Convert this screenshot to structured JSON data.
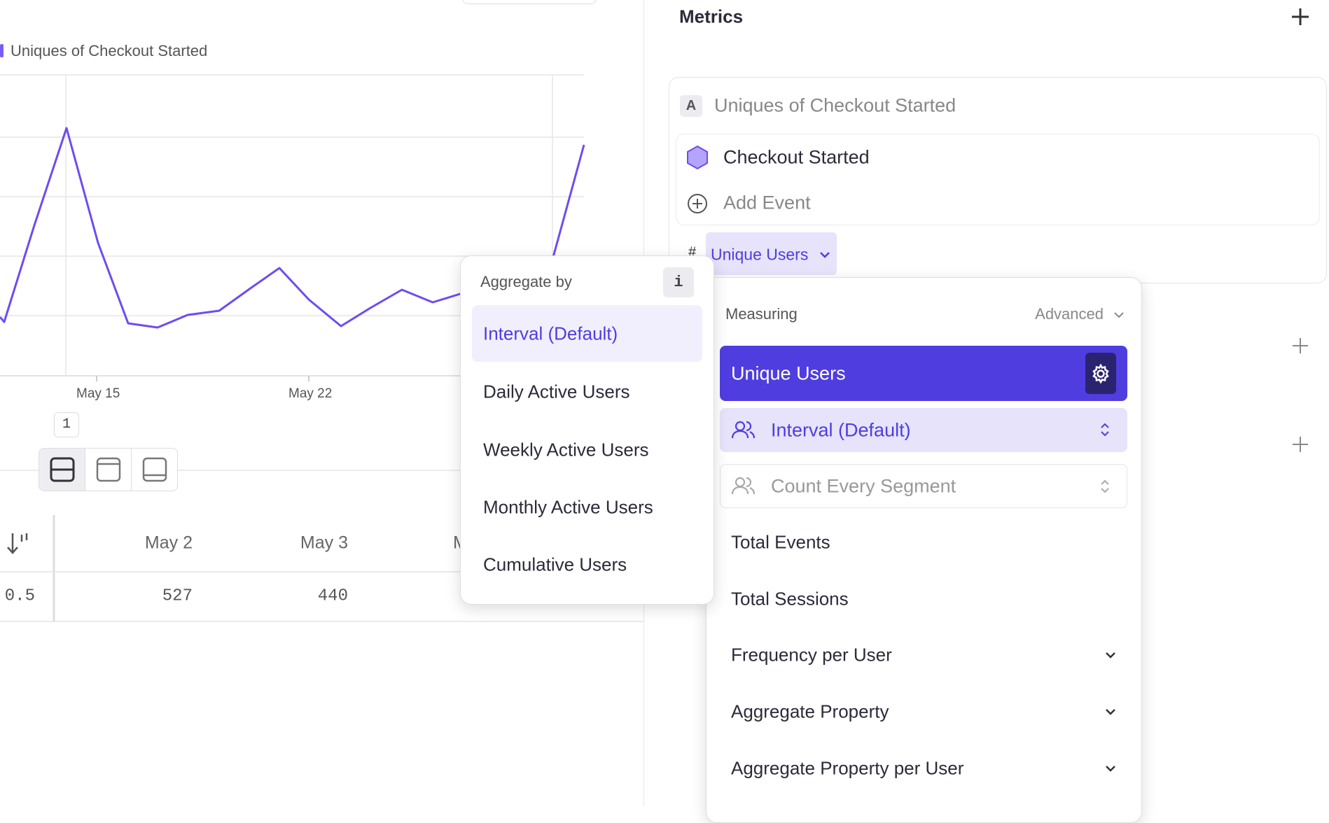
{
  "chart": {
    "legend": "Uniques of Checkout Started",
    "x_labels": [
      "May 15",
      "May 22"
    ],
    "badge": "1"
  },
  "table": {
    "headers": [
      "May 2",
      "May 3",
      "M"
    ],
    "rows": [
      [
        0.5,
        527,
        440
      ]
    ]
  },
  "metrics": {
    "title": "Metrics",
    "metric": {
      "letter": "A",
      "name": "Uniques of Checkout Started",
      "event": "Checkout Started",
      "add_event": "Add Event",
      "hash": "#",
      "measure": "Unique Users"
    }
  },
  "aggregate_menu": {
    "title": "Aggregate by",
    "info": "i",
    "options": [
      "Interval (Default)",
      "Daily Active Users",
      "Weekly Active Users",
      "Monthly Active Users",
      "Cumulative Users"
    ]
  },
  "measuring_menu": {
    "title": "Measuring",
    "advanced": "Advanced",
    "selected": "Unique Users",
    "aggregation": "Interval (Default)",
    "segment": "Count Every Segment",
    "options": [
      "Total Events",
      "Total Sessions",
      "Frequency per User",
      "Aggregate Property",
      "Aggregate Property per User"
    ]
  }
}
